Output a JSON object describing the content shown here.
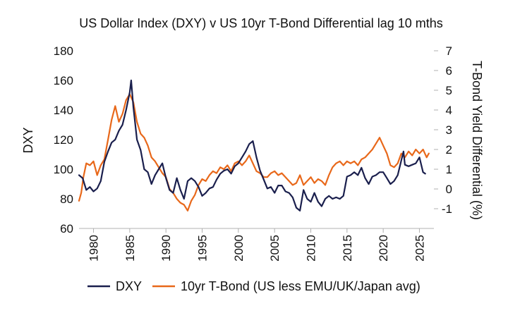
{
  "chart_data": {
    "type": "line",
    "title": "US Dollar Index (DXY) v US 10yr T-Bond Differential lag 10 mths",
    "y_left_label": "DXY",
    "y_right_label": "T-Bond Yield Differential (%)",
    "xlim": [
      1978,
      2027
    ],
    "ylim_left": [
      60,
      180
    ],
    "ylim_right": [
      -2,
      7
    ],
    "x_ticks": [
      1980,
      1985,
      1990,
      1995,
      2000,
      2005,
      2010,
      2015,
      2020,
      2025
    ],
    "x_tick_labels": [
      "1980",
      "1985",
      "1990",
      "1995",
      "2000",
      "2005",
      "2010",
      "2015",
      "2020",
      "2025"
    ],
    "y_left_ticks": [
      60,
      80,
      100,
      120,
      140,
      160,
      180
    ],
    "y_left_tick_labels": [
      "60",
      "80",
      "100",
      "120",
      "140",
      "160",
      "180"
    ],
    "y_right_ticks": [
      -1,
      0,
      1,
      2,
      3,
      4,
      5,
      6,
      7
    ],
    "y_right_tick_labels": [
      "-1",
      "0",
      "1",
      "2",
      "3",
      "4",
      "5",
      "6",
      "7"
    ],
    "legend_position": "bottom",
    "grid": false,
    "series": [
      {
        "name": "DXY",
        "axis": "left",
        "color": "#1a1f4d",
        "points": [
          [
            1978.0,
            96
          ],
          [
            1978.5,
            94
          ],
          [
            1979.0,
            86
          ],
          [
            1979.5,
            88
          ],
          [
            1980.0,
            85
          ],
          [
            1980.5,
            87
          ],
          [
            1981.0,
            92
          ],
          [
            1981.5,
            105
          ],
          [
            1982.0,
            112
          ],
          [
            1982.5,
            118
          ],
          [
            1983.0,
            120
          ],
          [
            1983.5,
            126
          ],
          [
            1984.0,
            130
          ],
          [
            1984.5,
            140
          ],
          [
            1985.0,
            152
          ],
          [
            1985.2,
            160
          ],
          [
            1985.5,
            142
          ],
          [
            1986.0,
            120
          ],
          [
            1986.5,
            113
          ],
          [
            1987.0,
            100
          ],
          [
            1987.5,
            98
          ],
          [
            1988.0,
            90
          ],
          [
            1988.5,
            96
          ],
          [
            1989.0,
            100
          ],
          [
            1989.5,
            104
          ],
          [
            1990.0,
            94
          ],
          [
            1990.5,
            86
          ],
          [
            1991.0,
            84
          ],
          [
            1991.5,
            94
          ],
          [
            1992.0,
            86
          ],
          [
            1992.5,
            80
          ],
          [
            1993.0,
            92
          ],
          [
            1993.5,
            94
          ],
          [
            1994.0,
            92
          ],
          [
            1994.5,
            88
          ],
          [
            1995.0,
            82
          ],
          [
            1995.5,
            84
          ],
          [
            1996.0,
            87
          ],
          [
            1996.5,
            88
          ],
          [
            1997.0,
            93
          ],
          [
            1997.5,
            97
          ],
          [
            1998.0,
            99
          ],
          [
            1998.5,
            100
          ],
          [
            1999.0,
            97
          ],
          [
            1999.5,
            102
          ],
          [
            2000.0,
            104
          ],
          [
            2000.5,
            108
          ],
          [
            2001.0,
            112
          ],
          [
            2001.5,
            117
          ],
          [
            2002.0,
            119
          ],
          [
            2002.5,
            108
          ],
          [
            2003.0,
            99
          ],
          [
            2003.5,
            93
          ],
          [
            2004.0,
            87
          ],
          [
            2004.5,
            88
          ],
          [
            2005.0,
            84
          ],
          [
            2005.5,
            89
          ],
          [
            2006.0,
            89
          ],
          [
            2006.5,
            85
          ],
          [
            2007.0,
            84
          ],
          [
            2007.5,
            81
          ],
          [
            2008.0,
            74
          ],
          [
            2008.5,
            72
          ],
          [
            2009.0,
            86
          ],
          [
            2009.5,
            80
          ],
          [
            2010.0,
            78
          ],
          [
            2010.5,
            84
          ],
          [
            2011.0,
            78
          ],
          [
            2011.5,
            75
          ],
          [
            2012.0,
            80
          ],
          [
            2012.5,
            82
          ],
          [
            2013.0,
            80
          ],
          [
            2013.5,
            81
          ],
          [
            2014.0,
            80
          ],
          [
            2014.5,
            82
          ],
          [
            2015.0,
            95
          ],
          [
            2015.5,
            96
          ],
          [
            2016.0,
            98
          ],
          [
            2016.5,
            96
          ],
          [
            2017.0,
            101
          ],
          [
            2017.5,
            94
          ],
          [
            2018.0,
            90
          ],
          [
            2018.5,
            95
          ],
          [
            2019.0,
            96
          ],
          [
            2019.5,
            98
          ],
          [
            2020.0,
            98
          ],
          [
            2020.5,
            94
          ],
          [
            2021.0,
            90
          ],
          [
            2021.5,
            92
          ],
          [
            2022.0,
            96
          ],
          [
            2022.5,
            106
          ],
          [
            2022.8,
            112
          ],
          [
            2023.0,
            103
          ],
          [
            2023.5,
            102
          ],
          [
            2024.0,
            103
          ],
          [
            2024.5,
            104
          ],
          [
            2025.0,
            108
          ],
          [
            2025.5,
            98
          ],
          [
            2025.8,
            97
          ]
        ]
      },
      {
        "name": "10yr T-Bond (US less EMU/UK/Japan avg)",
        "axis": "right",
        "color": "#e8681a",
        "points": [
          [
            1978.0,
            -0.6
          ],
          [
            1978.3,
            -0.2
          ],
          [
            1978.6,
            0.6
          ],
          [
            1979.0,
            1.3
          ],
          [
            1979.5,
            1.2
          ],
          [
            1980.0,
            1.4
          ],
          [
            1980.5,
            0.7
          ],
          [
            1981.0,
            1.2
          ],
          [
            1981.5,
            1.5
          ],
          [
            1982.0,
            2.5
          ],
          [
            1982.5,
            3.5
          ],
          [
            1983.0,
            4.2
          ],
          [
            1983.5,
            3.4
          ],
          [
            1984.0,
            3.8
          ],
          [
            1984.5,
            4.5
          ],
          [
            1985.0,
            4.8
          ],
          [
            1985.5,
            4.4
          ],
          [
            1986.0,
            3.4
          ],
          [
            1986.5,
            2.8
          ],
          [
            1987.0,
            2.6
          ],
          [
            1987.5,
            2.2
          ],
          [
            1988.0,
            1.6
          ],
          [
            1988.5,
            1.4
          ],
          [
            1989.0,
            1.1
          ],
          [
            1989.5,
            0.8
          ],
          [
            1990.0,
            0.6
          ],
          [
            1990.5,
            0.0
          ],
          [
            1991.0,
            -0.2
          ],
          [
            1991.5,
            -0.5
          ],
          [
            1992.0,
            -0.7
          ],
          [
            1992.5,
            -0.8
          ],
          [
            1993.0,
            -1.1
          ],
          [
            1993.5,
            -0.6
          ],
          [
            1994.0,
            -0.3
          ],
          [
            1994.5,
            0.2
          ],
          [
            1995.0,
            0.5
          ],
          [
            1995.5,
            0.4
          ],
          [
            1996.0,
            0.7
          ],
          [
            1996.5,
            0.9
          ],
          [
            1997.0,
            0.8
          ],
          [
            1997.5,
            1.1
          ],
          [
            1998.0,
            1.0
          ],
          [
            1998.5,
            1.2
          ],
          [
            1999.0,
            0.9
          ],
          [
            1999.5,
            1.3
          ],
          [
            2000.0,
            1.4
          ],
          [
            2000.5,
            1.2
          ],
          [
            2001.0,
            1.4
          ],
          [
            2001.5,
            1.7
          ],
          [
            2002.0,
            1.3
          ],
          [
            2002.5,
            0.9
          ],
          [
            2003.0,
            0.8
          ],
          [
            2003.5,
            0.6
          ],
          [
            2004.0,
            0.6
          ],
          [
            2004.5,
            0.8
          ],
          [
            2005.0,
            0.9
          ],
          [
            2005.5,
            0.7
          ],
          [
            2006.0,
            0.8
          ],
          [
            2006.5,
            0.6
          ],
          [
            2007.0,
            0.4
          ],
          [
            2007.5,
            0.2
          ],
          [
            2008.0,
            0.3
          ],
          [
            2008.5,
            0.7
          ],
          [
            2009.0,
            0.2
          ],
          [
            2009.5,
            0.4
          ],
          [
            2010.0,
            0.6
          ],
          [
            2010.5,
            0.3
          ],
          [
            2011.0,
            0.5
          ],
          [
            2011.5,
            0.4
          ],
          [
            2012.0,
            0.2
          ],
          [
            2012.5,
            0.7
          ],
          [
            2013.0,
            1.1
          ],
          [
            2013.5,
            1.3
          ],
          [
            2014.0,
            1.4
          ],
          [
            2014.5,
            1.2
          ],
          [
            2015.0,
            1.4
          ],
          [
            2015.5,
            1.3
          ],
          [
            2016.0,
            1.4
          ],
          [
            2016.5,
            1.2
          ],
          [
            2017.0,
            1.5
          ],
          [
            2017.5,
            1.6
          ],
          [
            2018.0,
            1.8
          ],
          [
            2018.5,
            2.0
          ],
          [
            2019.0,
            2.3
          ],
          [
            2019.5,
            2.6
          ],
          [
            2020.0,
            2.2
          ],
          [
            2020.5,
            1.8
          ],
          [
            2021.0,
            1.2
          ],
          [
            2021.5,
            1.1
          ],
          [
            2022.0,
            1.3
          ],
          [
            2022.5,
            1.8
          ],
          [
            2023.0,
            1.6
          ],
          [
            2023.5,
            1.9
          ],
          [
            2024.0,
            1.7
          ],
          [
            2024.5,
            2.0
          ],
          [
            2025.0,
            1.8
          ],
          [
            2025.5,
            2.0
          ],
          [
            2026.0,
            1.6
          ],
          [
            2026.3,
            1.8
          ]
        ]
      }
    ]
  }
}
